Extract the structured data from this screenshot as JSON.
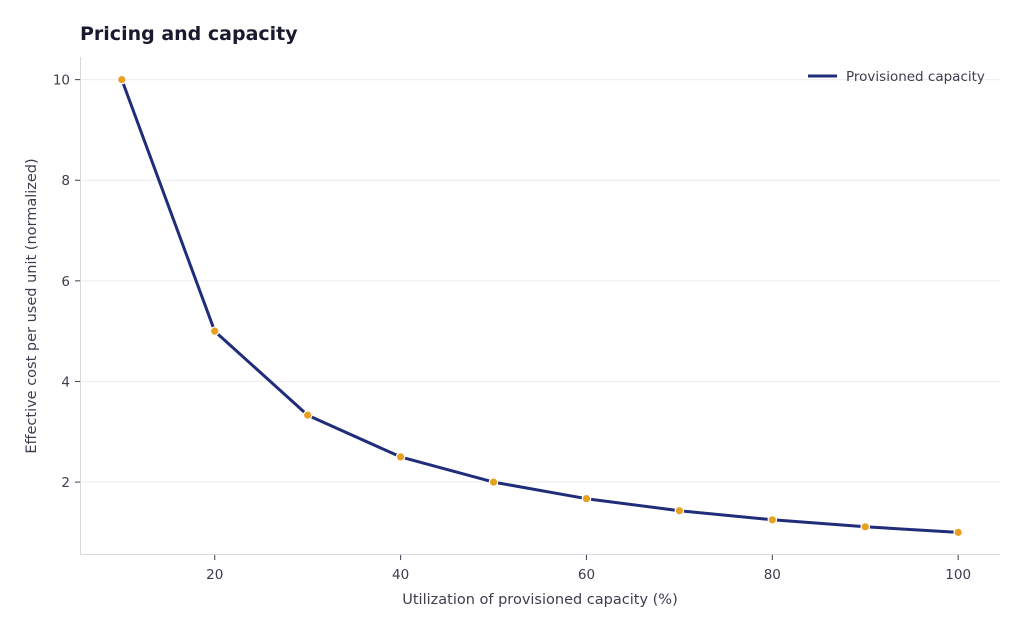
{
  "chart_data": {
    "type": "line",
    "title": "Pricing and capacity",
    "xlabel": "Utilization of provisioned capacity (%)",
    "ylabel": "Effective cost per used unit (normalized)",
    "xlim": [
      5.5,
      104.5
    ],
    "ylim": [
      0.55,
      10.45
    ],
    "xticks": [
      20,
      40,
      60,
      80,
      100
    ],
    "yticks": [
      2,
      4,
      6,
      8,
      10
    ],
    "grid": "horizontal",
    "legend_position": "top-right",
    "series": [
      {
        "name": "Provisioned capacity",
        "line_color": "#1f2d7a",
        "marker_color": "#e8a020",
        "x": [
          10,
          20,
          30,
          40,
          50,
          60,
          70,
          80,
          90,
          100
        ],
        "y": [
          10,
          5,
          3.33,
          2.5,
          2,
          1.67,
          1.43,
          1.25,
          1.11,
          1
        ]
      }
    ]
  }
}
